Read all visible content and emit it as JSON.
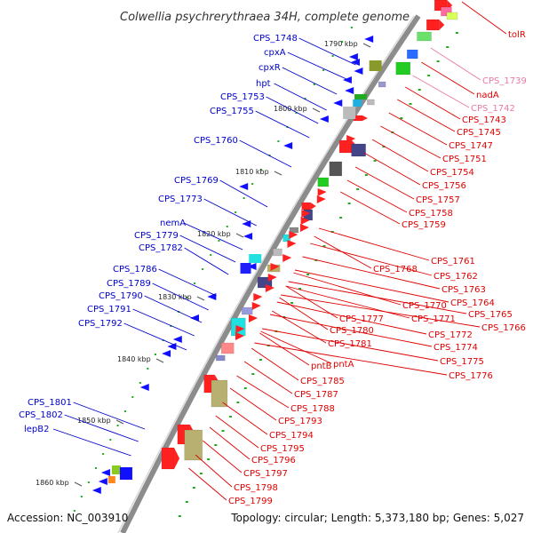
{
  "title": "Colwellia psychrerythraea 34H, complete genome",
  "footer": {
    "accession": "Accession: NC_003910",
    "summary": "Topology: circular; Length: 5,373,180 bp; Genes: 5,027"
  },
  "colors": {
    "backbone": "#8c8c8c",
    "left_label": "#0000cc",
    "right_label": "#e00000",
    "right_label_faded": "#e87aa8",
    "tick": "#22aa22"
  },
  "kbp_marks": [
    "1790 kbp",
    "1800 kbp",
    "1810 kbp",
    "1820 kbp",
    "1830 kbp",
    "1840 kbp",
    "1850 kbp",
    "1860 kbp"
  ],
  "left_labels": [
    "CPS_1748",
    "cpxA",
    "cpxR",
    "hpt",
    "CPS_1753",
    "CPS_1755",
    "CPS_1760",
    "CPS_1769",
    "CPS_1773",
    "nemA",
    "CPS_1779",
    "CPS_1782",
    "CPS_1786",
    "CPS_1789",
    "CPS_1790",
    "CPS_1791",
    "CPS_1792",
    "CPS_1801",
    "CPS_1802",
    "lepB2"
  ],
  "right_labels": [
    "tolR",
    "CPS_1739",
    "nadA",
    "CPS_1742",
    "CPS_1743",
    "CPS_1745",
    "CPS_1747",
    "CPS_1751",
    "CPS_1754",
    "CPS_1756",
    "CPS_1757",
    "CPS_1758",
    "CPS_1759",
    "CPS_1761",
    "CPS_1768",
    "CPS_1762",
    "CPS_1763",
    "CPS_1764",
    "CPS_1770",
    "CPS_1765",
    "CPS_1771",
    "CPS_1766",
    "CPS_1777",
    "CPS_1772",
    "CPS_1780",
    "CPS_1774",
    "CPS_1781",
    "CPS_1775",
    "pntB",
    "pntA",
    "CPS_1776",
    "CPS_1785",
    "CPS_1787",
    "CPS_1788",
    "CPS_1793",
    "CPS_1794",
    "CPS_1795",
    "CPS_1796",
    "CPS_1797",
    "CPS_1798",
    "CPS_1799"
  ]
}
